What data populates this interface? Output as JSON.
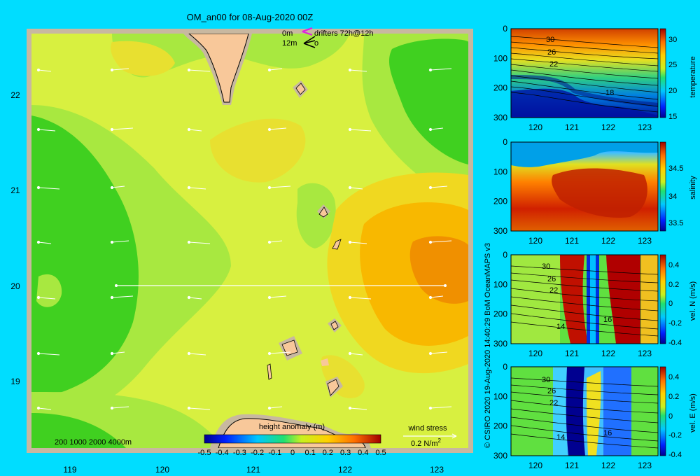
{
  "title": "OM_an00 for 08-Aug-2020 00Z",
  "map": {
    "lon_ticks": [
      "119",
      "120",
      "121",
      "122",
      "123"
    ],
    "lat_ticks": [
      "22",
      "21",
      "20",
      "19"
    ],
    "legend_depth": "0m",
    "legend_depth2": "12m",
    "legend_drifters": "drifters 72h@12h",
    "legend_depth2_marker": "o",
    "isobaths": "200  1000  2000  4000m",
    "colorbar_title": "height anomaly (m)",
    "colorbar_ticks": [
      "-0.5",
      "-0.4",
      "-0.3",
      "-0.2",
      "-0.1",
      "0",
      "0.1",
      "0.2",
      "0.3",
      "0.4",
      "0.5"
    ],
    "wind_title": "wind stress",
    "wind_scale": "0.2 N/m",
    "wind_scale_sup": "2"
  },
  "credit": "© CSIRO 2020  19-Aug-2020 14:40:29 BoM OceanMAPS v3",
  "panels": [
    {
      "id": "temperature",
      "colorbar_label": "temperature",
      "colorbar_ticks": [
        "30",
        "25",
        "20",
        "15"
      ],
      "y_ticks": [
        "0",
        "100",
        "200",
        "300"
      ],
      "x_ticks": [
        "120",
        "121",
        "122",
        "123"
      ],
      "contour_labels": [
        "30",
        "26",
        "22",
        "18"
      ]
    },
    {
      "id": "salinity",
      "colorbar_label": "salinity",
      "colorbar_ticks": [
        "34.5",
        "34",
        "33.5"
      ],
      "y_ticks": [
        "0",
        "100",
        "200",
        "300"
      ],
      "x_ticks": [
        "120",
        "121",
        "122",
        "123"
      ],
      "contour_labels": []
    },
    {
      "id": "vel-n",
      "colorbar_label": "vel. N (m/s)",
      "colorbar_ticks": [
        "0.4",
        "0.2",
        "0",
        "-0.2",
        "-0.4"
      ],
      "y_ticks": [
        "0",
        "100",
        "200",
        "300"
      ],
      "x_ticks": [
        "120",
        "121",
        "122",
        "123"
      ],
      "contour_labels": [
        "30",
        "26",
        "22",
        "14",
        "16"
      ]
    },
    {
      "id": "vel-e",
      "colorbar_label": "vel. E (m/s)",
      "colorbar_ticks": [
        "0.4",
        "0.2",
        "0",
        "-0.2",
        "-0.4"
      ],
      "y_ticks": [
        "0",
        "100",
        "200",
        "300"
      ],
      "x_ticks": [
        "120",
        "121",
        "122",
        "123"
      ],
      "contour_labels": [
        "30",
        "26",
        "22",
        "14",
        "16"
      ]
    }
  ],
  "colors": {
    "background": "#00ddff",
    "land": "#f8c89a",
    "shelf": "#c8b8a0",
    "frame": "#c8b8a0"
  }
}
